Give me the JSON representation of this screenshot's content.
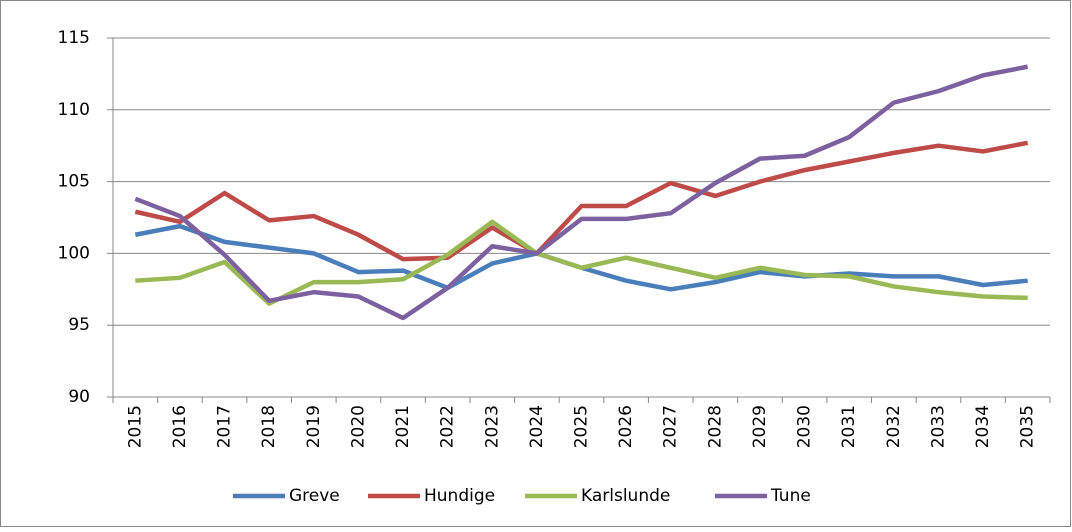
{
  "chart_data": {
    "type": "line",
    "categories": [
      "2015",
      "2016",
      "2017",
      "2018",
      "2019",
      "2020",
      "2021",
      "2022",
      "2023",
      "2024",
      "2025",
      "2026",
      "2027",
      "2028",
      "2029",
      "2030",
      "2031",
      "2032",
      "2033",
      "2034",
      "2035"
    ],
    "series": [
      {
        "name": "Greve",
        "color": "#4a7ebb",
        "values": [
          101.3,
          101.9,
          100.8,
          100.4,
          100.0,
          98.7,
          98.8,
          97.6,
          99.3,
          100,
          99.0,
          98.1,
          97.5,
          98.0,
          98.7,
          98.4,
          98.6,
          98.4,
          98.4,
          97.8,
          98.1
        ]
      },
      {
        "name": "Hundige",
        "color": "#be4b48",
        "values": [
          102.9,
          102.2,
          104.2,
          102.3,
          102.6,
          101.3,
          99.6,
          99.7,
          101.8,
          100,
          103.3,
          103.3,
          104.9,
          104.0,
          105.0,
          105.8,
          106.4,
          107.0,
          107.5,
          107.1,
          107.7
        ]
      },
      {
        "name": "Karlslunde",
        "color": "#98b954",
        "values": [
          98.1,
          98.3,
          99.4,
          96.5,
          98.0,
          98.0,
          98.2,
          99.9,
          102.2,
          100,
          99.0,
          99.7,
          99.0,
          98.3,
          99.0,
          98.5,
          98.4,
          97.7,
          97.3,
          97.0,
          96.9
        ]
      },
      {
        "name": "Tune",
        "color": "#7d60a0",
        "values": [
          103.8,
          102.6,
          99.9,
          96.7,
          97.3,
          97.0,
          95.5,
          97.6,
          100.5,
          100,
          102.4,
          102.4,
          102.8,
          104.9,
          106.6,
          106.8,
          108.1,
          110.5,
          111.3,
          112.4,
          113.0
        ]
      }
    ],
    "ylim": [
      90,
      115
    ],
    "yticks": [
      90,
      95,
      100,
      105,
      110,
      115
    ],
    "grid": true,
    "legend": "bottom"
  }
}
